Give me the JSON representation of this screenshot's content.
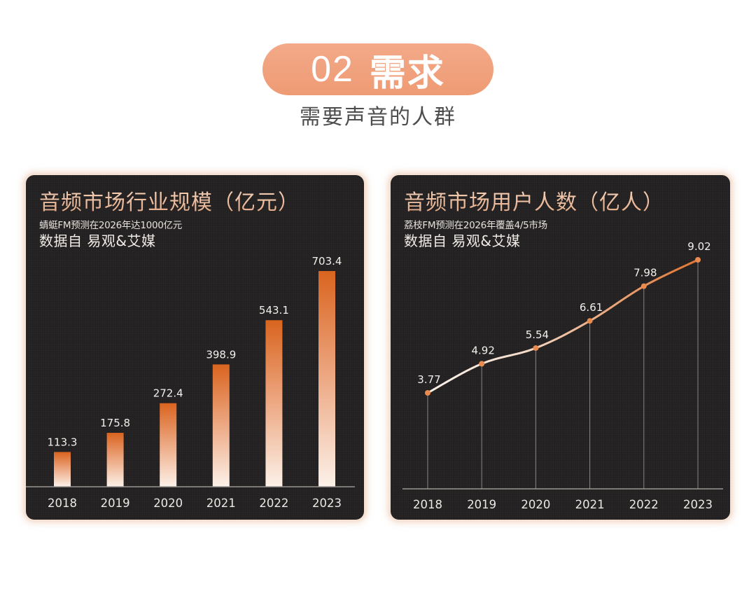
{
  "header": {
    "section_number": "02",
    "section_title": "需求",
    "subtitle": "需要声音的人群",
    "pill_color": "#ee9b74"
  },
  "left_card": {
    "title": "音频市场行业规模（亿元）",
    "note": "蜻蜓FM预测在2026年达1000亿元",
    "source": "数据自  易观&艾媒"
  },
  "right_card": {
    "title": "音频市场用户人数（亿人）",
    "note": "荔枝FM预测在2026年覆盖4/5市场",
    "source": "数据自  易观&艾媒"
  },
  "colors": {
    "card_bg": "#232121",
    "accent_orange": "#d9692a",
    "bar_bottom": "#fbeee4",
    "title_peach": "#f0c3a6",
    "line_light": "#f6e6da"
  },
  "chart_data": [
    {
      "type": "bar",
      "title": "音频市场行业规模（亿元）",
      "subtitle": "蜻蜓FM预测在2026年达1000亿元",
      "source": "数据自  易观&艾媒",
      "categories": [
        "2018",
        "2019",
        "2020",
        "2021",
        "2022",
        "2023"
      ],
      "values": [
        113.3,
        175.8,
        272.4,
        398.9,
        543.1,
        703.4
      ],
      "labels": [
        "113.3",
        "175.8",
        "272.4",
        "398.9",
        "543.1",
        "703.4"
      ],
      "xlabel": "",
      "ylabel": "亿元",
      "ylim": [
        0,
        703.4
      ],
      "grid": false,
      "legend": null
    },
    {
      "type": "line",
      "title": "音频市场用户人数（亿人）",
      "subtitle": "荔枝FM预测在2026年覆盖4/5市场",
      "source": "数据自  易观&艾媒",
      "categories": [
        "2018",
        "2019",
        "2020",
        "2021",
        "2022",
        "2023"
      ],
      "values": [
        3.77,
        4.92,
        5.54,
        6.61,
        7.98,
        9.02
      ],
      "labels": [
        "3.77",
        "4.92",
        "5.54",
        "6.61",
        "7.98",
        "9.02"
      ],
      "xlabel": "",
      "ylabel": "亿人",
      "grid": false,
      "drop_lines": true,
      "legend": null
    }
  ]
}
